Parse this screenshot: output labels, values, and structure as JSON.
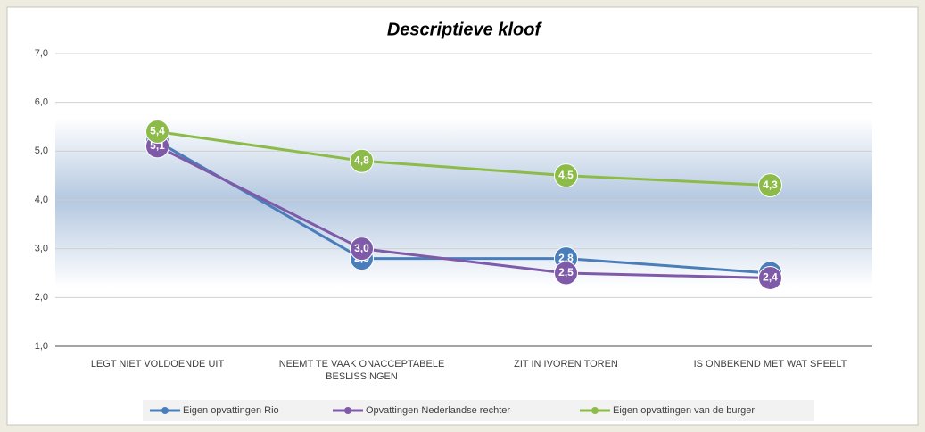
{
  "chart_data": {
    "type": "line",
    "title": "Descriptieve kloof",
    "categories": [
      "LEGT NIET VOLDOENDE UIT",
      "NEEMT TE VAAK ONACCEPTABELE BESLISSINGEN",
      "ZIT IN IVOREN TOREN",
      "IS ONBEKEND MET WAT SPEELT"
    ],
    "series": [
      {
        "name": "Eigen opvattingen Rio",
        "color": "#4a7ebb",
        "values": [
          5.2,
          2.8,
          2.8,
          2.5
        ],
        "value_labels": [
          "5,2",
          "2,8",
          "2,8",
          "2,5"
        ]
      },
      {
        "name": "Opvattingen Nederlandse rechter",
        "color": "#7f5aa8",
        "values": [
          5.1,
          3.0,
          2.5,
          2.4
        ],
        "value_labels": [
          "5,1",
          "3,0",
          "2,5",
          "2,4"
        ]
      },
      {
        "name": "Eigen opvattingen van de burger",
        "color": "#8dbb4a",
        "values": [
          5.4,
          4.8,
          4.5,
          4.3
        ],
        "value_labels": [
          "5,4",
          "4,8",
          "4,5",
          "4,3"
        ]
      }
    ],
    "ylim": [
      1,
      7
    ],
    "yticks": [
      {
        "value": 1,
        "label": "1,0"
      },
      {
        "value": 2,
        "label": "2,0"
      },
      {
        "value": 3,
        "label": "3,0"
      },
      {
        "value": 4,
        "label": "4,0"
      },
      {
        "value": 5,
        "label": "5,0"
      },
      {
        "value": 6,
        "label": "6,0"
      },
      {
        "value": 7,
        "label": "7,0"
      }
    ],
    "grid": true,
    "legend": "bottom"
  }
}
